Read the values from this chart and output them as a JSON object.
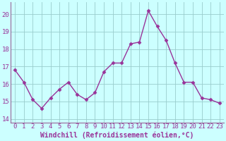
{
  "x": [
    0,
    1,
    2,
    3,
    4,
    5,
    6,
    7,
    8,
    9,
    10,
    11,
    12,
    13,
    14,
    15,
    16,
    17,
    18,
    19,
    20,
    21,
    22,
    23
  ],
  "y": [
    16.8,
    16.1,
    15.1,
    14.6,
    15.2,
    15.7,
    16.1,
    15.4,
    15.1,
    15.5,
    16.7,
    17.2,
    17.2,
    18.3,
    18.4,
    20.2,
    19.3,
    18.5,
    17.2,
    16.1,
    16.1,
    15.2,
    15.1,
    14.9
  ],
  "line_color": "#993399",
  "marker_color": "#993399",
  "bg_color": "#ccffff",
  "grid_color": "#99cccc",
  "spine_color": "#996699",
  "xlabel": "Windchill (Refroidissement éolien,°C)",
  "xlim": [
    -0.5,
    23.5
  ],
  "ylim": [
    13.8,
    20.7
  ],
  "yticks": [
    14,
    15,
    16,
    17,
    18,
    19,
    20
  ],
  "xtick_labels": [
    "0",
    "1",
    "2",
    "3",
    "4",
    "5",
    "6",
    "7",
    "8",
    "9",
    "10",
    "11",
    "12",
    "13",
    "14",
    "15",
    "16",
    "17",
    "18",
    "19",
    "20",
    "21",
    "22",
    "23"
  ],
  "xlabel_fontsize": 7,
  "tick_fontsize": 6.5,
  "line_width": 1.0,
  "marker_size": 2.5
}
